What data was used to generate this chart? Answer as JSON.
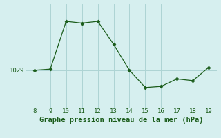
{
  "x": [
    8,
    9,
    10,
    11,
    12,
    13,
    14,
    15,
    16,
    17,
    18,
    19
  ],
  "y": [
    1029.0,
    1029.2,
    1037.5,
    1037.2,
    1037.5,
    1033.5,
    1029.0,
    1026.0,
    1026.2,
    1027.5,
    1027.2,
    1029.5
  ],
  "bg_color": "#d6efef",
  "grid_color": "#add4d4",
  "line_color": "#1a5c1a",
  "marker_color": "#1a5c1a",
  "xlabel": "Graphe pression niveau de la mer (hPa)",
  "ylabel_tick": "1029",
  "ytick_val": 1029,
  "xlim": [
    7.5,
    19.5
  ],
  "ylim": [
    1022.5,
    1040.5
  ],
  "xticks": [
    8,
    9,
    10,
    11,
    12,
    13,
    14,
    15,
    16,
    17,
    18,
    19
  ],
  "yticks": [
    1029
  ],
  "tick_fontsize": 6.5,
  "xlabel_fontsize": 7.5
}
